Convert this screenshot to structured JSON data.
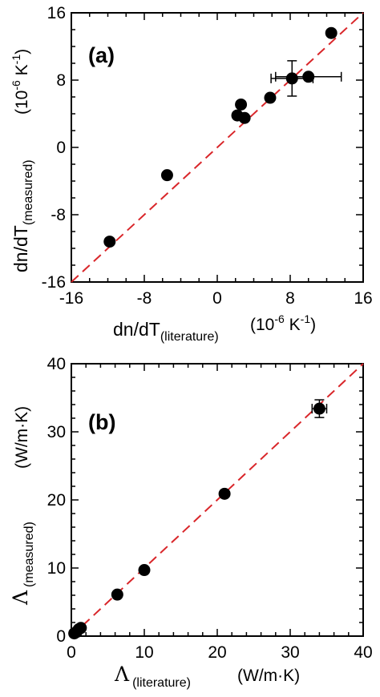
{
  "chart_data": [
    {
      "type": "scatter",
      "panel_label": "(a)",
      "xlabel": {
        "main": "dn/dT",
        "sub": "(literature)",
        "unit_pre": "(10",
        "unit_exp": "-6",
        "unit_mid": " K",
        "unit_exp2": "-1",
        "unit_post": ")"
      },
      "ylabel": {
        "main": "dn/dT",
        "sub": "(measured)",
        "unit_pre": "(10",
        "unit_exp": "-6",
        "unit_mid": " K",
        "unit_exp2": "-1",
        "unit_post": ")"
      },
      "xlim": [
        -16,
        16
      ],
      "ylim": [
        -16,
        16
      ],
      "xticks": [
        "-16",
        "-8",
        "0",
        "8",
        "16"
      ],
      "yticks": [
        "-16",
        "-8",
        "0",
        "8",
        "16"
      ],
      "reference_line": {
        "style": "dashed",
        "color": "#d9262a",
        "from": [
          -16,
          -16
        ],
        "to": [
          16,
          16
        ]
      },
      "points": [
        {
          "x": -11.8,
          "y": -11.2
        },
        {
          "x": -5.5,
          "y": -3.3
        },
        {
          "x": 2.2,
          "y": 3.8
        },
        {
          "x": 2.6,
          "y": 5.1
        },
        {
          "x": 3.0,
          "y": 3.5
        },
        {
          "x": 5.8,
          "y": 5.9
        },
        {
          "x": 8.2,
          "y": 8.2,
          "xerr": 2.3,
          "yerr": 2.1
        },
        {
          "x": 10.0,
          "y": 8.4,
          "xerr": 3.6
        },
        {
          "x": 12.5,
          "y": 13.6
        }
      ]
    },
    {
      "type": "scatter",
      "panel_label": "(b)",
      "xlabel": {
        "symbol": "Λ",
        "sub": "(literature)",
        "unit": "(W/m·K)"
      },
      "ylabel": {
        "symbol": "Λ",
        "sub": "(measured)",
        "unit": "(W/m·K)"
      },
      "xlim": [
        0,
        40
      ],
      "ylim": [
        0,
        40
      ],
      "xticks": [
        "0",
        "10",
        "20",
        "30",
        "40"
      ],
      "yticks": [
        "0",
        "10",
        "20",
        "30",
        "40"
      ],
      "reference_line": {
        "style": "dashed",
        "color": "#d9262a",
        "from": [
          0,
          0
        ],
        "to": [
          40,
          40
        ]
      },
      "points": [
        {
          "x": 0.4,
          "y": 0.4
        },
        {
          "x": 0.7,
          "y": 0.6
        },
        {
          "x": 1.0,
          "y": 1.0
        },
        {
          "x": 1.3,
          "y": 1.2
        },
        {
          "x": 6.3,
          "y": 6.1
        },
        {
          "x": 10.0,
          "y": 9.7
        },
        {
          "x": 21.0,
          "y": 20.9
        },
        {
          "x": 34.0,
          "y": 33.4,
          "xerr": 1.0,
          "yerr": 1.3
        }
      ]
    }
  ],
  "colors": {
    "points": "#000000",
    "reference": "#d9262a",
    "axes": "#000000"
  }
}
